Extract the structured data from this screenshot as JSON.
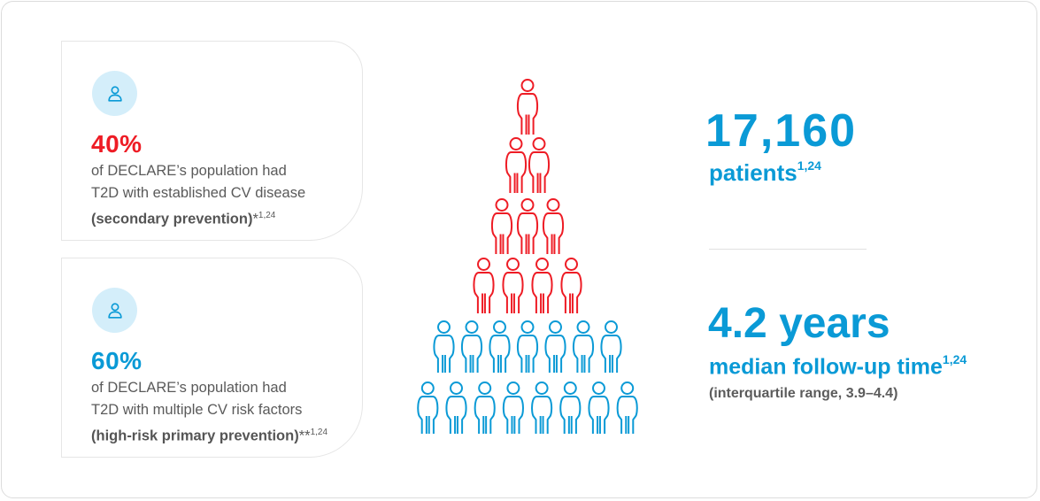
{
  "colors": {
    "red": "#ee1c25",
    "blue": "#0a9ad6",
    "avatar_bg": "#d4eefa"
  },
  "cards": [
    {
      "icon": "person-icon",
      "percent": "40%",
      "line1": "of DECLARE’s population had",
      "line2": "T2D with established CV disease",
      "bold": "(secondary prevention)",
      "marker": "*",
      "refs": "1,24"
    },
    {
      "icon": "person-icon",
      "percent": "60%",
      "line1": "of DECLARE’s population had",
      "line2": "T2D with multiple CV risk factors",
      "bold": "(high-risk primary prevention)",
      "marker": "**",
      "refs": "1,24"
    }
  ],
  "figure": {
    "red_rows": [
      1,
      2,
      3,
      4
    ],
    "blue_rows": [
      7,
      8
    ],
    "red_share": 0.4,
    "blue_share": 0.6
  },
  "stats": {
    "patients_number": "17,160",
    "patients_label": "patients",
    "patients_refs": "1,24",
    "years_value": "4.2 years",
    "followup_label": "median follow-up time",
    "followup_refs": "1,24",
    "iqr": "(interquartile range, 3.9–4.4)"
  }
}
